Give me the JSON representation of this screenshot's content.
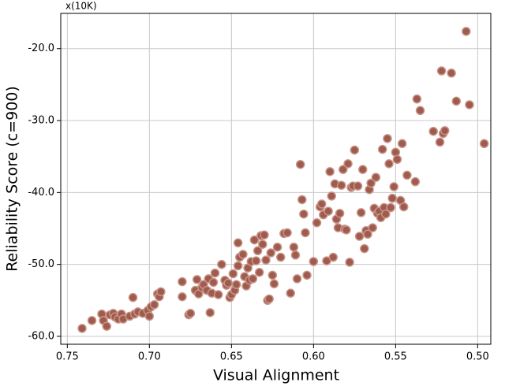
{
  "chart_data": {
    "type": "scatter",
    "annotation": "x(10K)",
    "x_label": "Visual Alignment",
    "y_label": "Reliability Score (c=900)",
    "color": "#9e5b4e",
    "grid": true,
    "xlim": [
      0.754,
      0.492
    ],
    "ylim": [
      -61.1,
      -15.1
    ],
    "xticks": [
      {
        "value": 0.75,
        "label": "0.75"
      },
      {
        "value": 0.7,
        "label": "0.70"
      },
      {
        "value": 0.65,
        "label": "0.65"
      },
      {
        "value": 0.6,
        "label": "0.60"
      },
      {
        "value": 0.55,
        "label": "0.55"
      },
      {
        "value": 0.5,
        "label": "0.50"
      }
    ],
    "yticks": [
      {
        "value": -60,
        "label": "-60.0"
      },
      {
        "value": -50,
        "label": "-50.0"
      },
      {
        "value": -40,
        "label": "-40.0"
      },
      {
        "value": -30,
        "label": "-30.0"
      },
      {
        "value": -20,
        "label": "-20.0"
      }
    ],
    "x": [
      0.741,
      0.735,
      0.729,
      0.728,
      0.726,
      0.724,
      0.722,
      0.721,
      0.719,
      0.717,
      0.716,
      0.712,
      0.71,
      0.709,
      0.707,
      0.704,
      0.701,
      0.7,
      0.699,
      0.697,
      0.695,
      0.694,
      0.693,
      0.68,
      0.68,
      0.676,
      0.675,
      0.672,
      0.671,
      0.67,
      0.668,
      0.667,
      0.665,
      0.664,
      0.663,
      0.662,
      0.661,
      0.66,
      0.658,
      0.656,
      0.654,
      0.653,
      0.652,
      0.651,
      0.65,
      0.649,
      0.648,
      0.647,
      0.646,
      0.646,
      0.645,
      0.643,
      0.642,
      0.641,
      0.64,
      0.639,
      0.638,
      0.637,
      0.636,
      0.635,
      0.634,
      0.633,
      0.632,
      0.631,
      0.63,
      0.629,
      0.628,
      0.627,
      0.626,
      0.625,
      0.624,
      0.622,
      0.62,
      0.618,
      0.616,
      0.614,
      0.612,
      0.611,
      0.61,
      0.608,
      0.607,
      0.606,
      0.605,
      0.604,
      0.6,
      0.598,
      0.596,
      0.595,
      0.594,
      0.592,
      0.591,
      0.59,
      0.589,
      0.588,
      0.587,
      0.586,
      0.585,
      0.584,
      0.583,
      0.582,
      0.581,
      0.58,
      0.579,
      0.578,
      0.577,
      0.576,
      0.575,
      0.573,
      0.572,
      0.571,
      0.57,
      0.569,
      0.568,
      0.567,
      0.566,
      0.565,
      0.564,
      0.563,
      0.562,
      0.561,
      0.56,
      0.559,
      0.558,
      0.557,
      0.556,
      0.555,
      0.554,
      0.553,
      0.552,
      0.551,
      0.55,
      0.549,
      0.547,
      0.546,
      0.545,
      0.543,
      0.538,
      0.537,
      0.535,
      0.527,
      0.523,
      0.522,
      0.521,
      0.52,
      0.516,
      0.513,
      0.507,
      0.505,
      0.496
    ],
    "y": [
      -58.9,
      -57.8,
      -56.9,
      -57.8,
      -58.6,
      -57.0,
      -56.8,
      -57.3,
      -57.6,
      -56.9,
      -57.6,
      -57.2,
      -54.6,
      -56.9,
      -56.6,
      -56.8,
      -56.4,
      -57.2,
      -55.9,
      -55.6,
      -54.1,
      -54.5,
      -53.8,
      -54.5,
      -52.4,
      -57.0,
      -56.8,
      -53.6,
      -52.1,
      -54.1,
      -53.2,
      -52.8,
      -53.6,
      -52.0,
      -56.7,
      -54.0,
      -52.5,
      -51.2,
      -54.2,
      -50.0,
      -52.2,
      -52.9,
      -52.6,
      -54.6,
      -54.2,
      -51.3,
      -53.6,
      -52.8,
      -50.2,
      -47.0,
      -49.0,
      -48.6,
      -51.7,
      -53.0,
      -50.5,
      -52.2,
      -49.6,
      -52.0,
      -46.6,
      -49.5,
      -48.1,
      -51.1,
      -46.0,
      -47.2,
      -45.9,
      -49.4,
      -55.0,
      -54.8,
      -48.4,
      -51.5,
      -52.7,
      -47.6,
      -49.0,
      -45.7,
      -45.6,
      -54.0,
      -47.6,
      -48.7,
      -52.0,
      -36.1,
      -41.0,
      -43.0,
      -45.6,
      -51.5,
      -49.6,
      -44.2,
      -42.0,
      -41.6,
      -43.1,
      -49.5,
      -42.6,
      -37.1,
      -40.5,
      -49.0,
      -38.8,
      -43.7,
      -44.9,
      -42.9,
      -39.0,
      -36.8,
      -45.1,
      -45.2,
      -36.0,
      -49.7,
      -39.3,
      -39.1,
      -34.1,
      -39.1,
      -46.1,
      -42.8,
      -36.8,
      -47.8,
      -45.3,
      -45.8,
      -39.6,
      -38.7,
      -44.9,
      -42.2,
      -37.9,
      -42.9,
      -42.6,
      -43.5,
      -34.0,
      -42.1,
      -43.0,
      -32.5,
      -36.0,
      -42.1,
      -40.8,
      -39.2,
      -34.4,
      -35.4,
      -41.1,
      -33.2,
      -42.0,
      -37.6,
      -38.5,
      -27.0,
      -28.6,
      -31.5,
      -33.0,
      -23.1,
      -31.8,
      -31.4,
      -23.4,
      -27.3,
      -17.6,
      -27.8,
      -33.2
    ]
  }
}
